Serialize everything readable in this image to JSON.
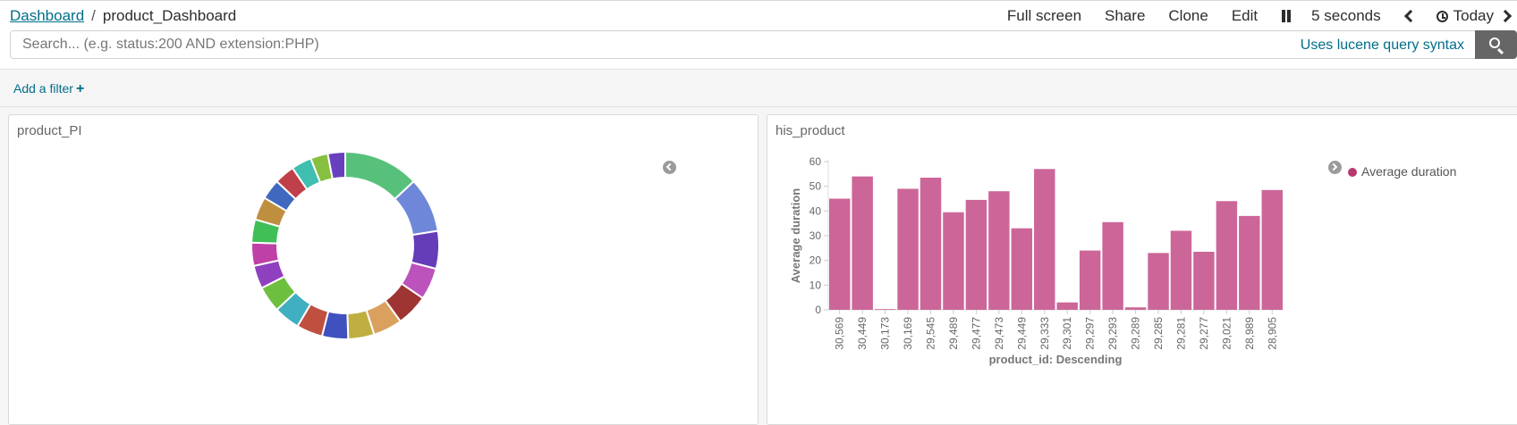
{
  "breadcrumb": {
    "root": "Dashboard",
    "separator": "/",
    "current": "product_Dashboard"
  },
  "menu": {
    "full_screen": "Full screen",
    "share": "Share",
    "clone": "Clone",
    "edit": "Edit",
    "pause_icon": "pause-icon",
    "refresh_interval": "5 seconds",
    "time_range": "Today"
  },
  "search": {
    "placeholder": "Search... (e.g. status:200 AND extension:PHP)",
    "syntax_link": "Uses lucene query syntax",
    "button_icon": "search-icon"
  },
  "filters": {
    "add_label": "Add a filter",
    "add_icon": "+"
  },
  "colors": {
    "link": "#006e8a",
    "bar": "#cc6699",
    "legend_dot": "#b5386e"
  },
  "panels": [
    {
      "title": "product_PI",
      "chart_data": {
        "type": "pie",
        "donut": true,
        "slices": [
          {
            "value": 13.0,
            "color": "#57c17b"
          },
          {
            "value": 9.5,
            "color": "#6f87d8"
          },
          {
            "value": 6.5,
            "color": "#663db8"
          },
          {
            "value": 5.5,
            "color": "#bc52bc"
          },
          {
            "value": 5.5,
            "color": "#9e3533"
          },
          {
            "value": 5.0,
            "color": "#daa05d"
          },
          {
            "value": 4.5,
            "color": "#bfaf40"
          },
          {
            "value": 4.5,
            "color": "#4050bf"
          },
          {
            "value": 4.5,
            "color": "#bf5040"
          },
          {
            "value": 4.5,
            "color": "#40afbf"
          },
          {
            "value": 4.5,
            "color": "#6dbf40"
          },
          {
            "value": 4.0,
            "color": "#8f40bf"
          },
          {
            "value": 4.0,
            "color": "#bf40a7"
          },
          {
            "value": 4.0,
            "color": "#40bf57"
          },
          {
            "value": 4.0,
            "color": "#bf8f40"
          },
          {
            "value": 3.5,
            "color": "#4068bf"
          },
          {
            "value": 3.5,
            "color": "#bf4048"
          },
          {
            "value": 3.5,
            "color": "#40bfb0"
          },
          {
            "value": 3.0,
            "color": "#87bf40"
          },
          {
            "value": 3.0,
            "color": "#6840bf"
          }
        ]
      }
    },
    {
      "title": "his_product",
      "chart_data": {
        "type": "bar",
        "categories": [
          "30,569",
          "30,449",
          "30,173",
          "30,169",
          "29,545",
          "29,489",
          "29,477",
          "29,473",
          "29,449",
          "29,333",
          "29,301",
          "29,297",
          "29,293",
          "29,289",
          "29,285",
          "29,281",
          "29,277",
          "29,021",
          "28,989",
          "28,905"
        ],
        "series": [
          {
            "name": "Average duration",
            "values": [
              45,
              54,
              0.3,
              49,
              53.5,
              39.5,
              44.5,
              48,
              33,
              57,
              3,
              24,
              35.5,
              1,
              23,
              32,
              23.5,
              44,
              38,
              48.5
            ]
          }
        ],
        "ylabel": "Average duration",
        "xlabel": "product_id: Descending",
        "ylim": [
          0,
          60
        ],
        "yticks": [
          0,
          10,
          20,
          30,
          40,
          50,
          60
        ],
        "legend": "right"
      }
    }
  ]
}
